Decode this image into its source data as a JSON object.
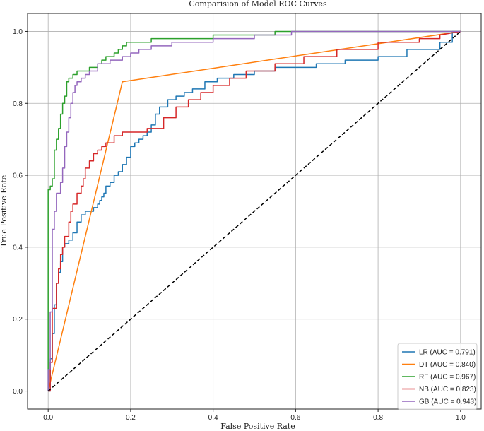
{
  "chart_data": {
    "type": "line",
    "title": "Comparision of Model ROC Curves",
    "xlabel": "False Positive Rate",
    "ylabel": "True Positive Rate",
    "xlim": [
      -0.05,
      1.05
    ],
    "ylim": [
      -0.05,
      1.05
    ],
    "xticks": [
      0.0,
      0.2,
      0.4,
      0.6,
      0.8,
      1.0
    ],
    "yticks": [
      0.0,
      0.2,
      0.4,
      0.6,
      0.8,
      1.0
    ],
    "tick_labels_x": [
      "0.0",
      "0.2",
      "0.4",
      "0.6",
      "0.8",
      "1.0"
    ],
    "tick_labels_y": [
      "0.0",
      "0.2",
      "0.4",
      "0.6",
      "0.8",
      "1.0"
    ],
    "grid": true,
    "legend": "lower-right",
    "series": [
      {
        "name": "LR (AUC = 0.791)",
        "color": "#1f77b4",
        "x": [
          0.0,
          0.005,
          0.005,
          0.01,
          0.01,
          0.015,
          0.015,
          0.02,
          0.02,
          0.025,
          0.025,
          0.03,
          0.03,
          0.035,
          0.035,
          0.04,
          0.04,
          0.05,
          0.05,
          0.06,
          0.06,
          0.07,
          0.07,
          0.08,
          0.08,
          0.09,
          0.09,
          0.11,
          0.11,
          0.12,
          0.12,
          0.125,
          0.125,
          0.13,
          0.13,
          0.135,
          0.135,
          0.14,
          0.14,
          0.15,
          0.15,
          0.16,
          0.16,
          0.17,
          0.17,
          0.18,
          0.18,
          0.19,
          0.19,
          0.2,
          0.2,
          0.21,
          0.21,
          0.22,
          0.22,
          0.23,
          0.23,
          0.24,
          0.24,
          0.25,
          0.25,
          0.26,
          0.26,
          0.27,
          0.27,
          0.29,
          0.29,
          0.31,
          0.31,
          0.33,
          0.33,
          0.35,
          0.35,
          0.38,
          0.38,
          0.41,
          0.41,
          0.45,
          0.45,
          0.5,
          0.5,
          0.55,
          0.55,
          0.6,
          0.6,
          0.65,
          0.65,
          0.72,
          0.72,
          0.8,
          0.8,
          0.87,
          0.87,
          0.9,
          0.9,
          0.95,
          0.95,
          0.98,
          0.98,
          1.0
        ],
        "y": [
          0.0,
          0.0,
          0.09,
          0.09,
          0.16,
          0.16,
          0.24,
          0.24,
          0.3,
          0.3,
          0.33,
          0.33,
          0.36,
          0.36,
          0.4,
          0.4,
          0.41,
          0.41,
          0.42,
          0.42,
          0.44,
          0.44,
          0.47,
          0.47,
          0.49,
          0.49,
          0.5,
          0.5,
          0.51,
          0.51,
          0.52,
          0.52,
          0.53,
          0.53,
          0.54,
          0.54,
          0.55,
          0.55,
          0.57,
          0.57,
          0.58,
          0.58,
          0.6,
          0.6,
          0.61,
          0.61,
          0.63,
          0.63,
          0.65,
          0.65,
          0.68,
          0.68,
          0.69,
          0.69,
          0.7,
          0.7,
          0.71,
          0.71,
          0.72,
          0.72,
          0.74,
          0.74,
          0.77,
          0.77,
          0.79,
          0.79,
          0.81,
          0.81,
          0.82,
          0.82,
          0.83,
          0.83,
          0.84,
          0.84,
          0.86,
          0.86,
          0.87,
          0.87,
          0.88,
          0.88,
          0.89,
          0.89,
          0.9,
          0.9,
          0.9,
          0.9,
          0.91,
          0.91,
          0.92,
          0.92,
          0.93,
          0.93,
          0.95,
          0.95,
          0.95,
          0.95,
          0.97,
          0.97,
          1.0,
          1.0
        ]
      },
      {
        "name": "DT (AUC = 0.840)",
        "color": "#ff7f0e",
        "x": [
          0.0,
          0.18,
          1.0
        ],
        "y": [
          0.0,
          0.86,
          1.0
        ]
      },
      {
        "name": "RF (AUC = 0.967)",
        "color": "#2ca02c",
        "x": [
          0.0,
          0.0,
          0.005,
          0.005,
          0.01,
          0.01,
          0.015,
          0.015,
          0.02,
          0.02,
          0.025,
          0.025,
          0.03,
          0.03,
          0.035,
          0.035,
          0.04,
          0.04,
          0.045,
          0.045,
          0.05,
          0.05,
          0.06,
          0.06,
          0.07,
          0.07,
          0.1,
          0.1,
          0.12,
          0.12,
          0.13,
          0.13,
          0.14,
          0.14,
          0.16,
          0.16,
          0.17,
          0.17,
          0.18,
          0.18,
          0.19,
          0.19,
          0.21,
          0.21,
          0.25,
          0.25,
          0.3,
          0.3,
          0.4,
          0.4,
          0.55,
          0.55,
          0.59,
          0.59,
          1.0
        ],
        "y": [
          0.0,
          0.56,
          0.56,
          0.57,
          0.57,
          0.59,
          0.59,
          0.67,
          0.67,
          0.7,
          0.7,
          0.73,
          0.73,
          0.77,
          0.77,
          0.8,
          0.8,
          0.82,
          0.82,
          0.86,
          0.86,
          0.87,
          0.87,
          0.88,
          0.88,
          0.89,
          0.89,
          0.9,
          0.9,
          0.91,
          0.91,
          0.92,
          0.92,
          0.93,
          0.93,
          0.94,
          0.94,
          0.95,
          0.95,
          0.96,
          0.96,
          0.97,
          0.97,
          0.97,
          0.97,
          0.98,
          0.98,
          0.98,
          0.98,
          0.99,
          0.99,
          1.0,
          1.0,
          1.0,
          1.0
        ]
      },
      {
        "name": "NB (AUC = 0.823)",
        "color": "#d62728",
        "x": [
          0.0,
          0.005,
          0.005,
          0.01,
          0.01,
          0.02,
          0.02,
          0.025,
          0.025,
          0.03,
          0.03,
          0.035,
          0.035,
          0.04,
          0.04,
          0.05,
          0.05,
          0.055,
          0.055,
          0.06,
          0.06,
          0.07,
          0.07,
          0.08,
          0.08,
          0.085,
          0.085,
          0.09,
          0.09,
          0.1,
          0.1,
          0.11,
          0.11,
          0.12,
          0.12,
          0.13,
          0.13,
          0.14,
          0.14,
          0.16,
          0.16,
          0.18,
          0.18,
          0.24,
          0.24,
          0.28,
          0.28,
          0.31,
          0.31,
          0.34,
          0.34,
          0.37,
          0.37,
          0.4,
          0.4,
          0.44,
          0.44,
          0.48,
          0.48,
          0.55,
          0.55,
          0.62,
          0.62,
          0.7,
          0.7,
          0.8,
          0.8,
          0.9,
          0.9,
          0.95,
          0.95,
          1.0
        ],
        "y": [
          0.0,
          0.0,
          0.08,
          0.08,
          0.23,
          0.23,
          0.3,
          0.3,
          0.34,
          0.34,
          0.38,
          0.38,
          0.4,
          0.4,
          0.43,
          0.43,
          0.47,
          0.47,
          0.5,
          0.5,
          0.52,
          0.52,
          0.55,
          0.55,
          0.57,
          0.57,
          0.59,
          0.59,
          0.62,
          0.62,
          0.64,
          0.64,
          0.66,
          0.66,
          0.67,
          0.67,
          0.68,
          0.68,
          0.69,
          0.69,
          0.71,
          0.71,
          0.72,
          0.72,
          0.73,
          0.73,
          0.76,
          0.76,
          0.79,
          0.79,
          0.81,
          0.81,
          0.83,
          0.83,
          0.85,
          0.85,
          0.87,
          0.87,
          0.89,
          0.89,
          0.91,
          0.91,
          0.93,
          0.93,
          0.95,
          0.95,
          0.97,
          0.97,
          0.98,
          0.98,
          0.99,
          1.0
        ]
      },
      {
        "name": "GB (AUC = 0.943)",
        "color": "#9467bd",
        "x": [
          0.0,
          0.0,
          0.005,
          0.005,
          0.01,
          0.01,
          0.015,
          0.015,
          0.02,
          0.02,
          0.03,
          0.03,
          0.035,
          0.035,
          0.04,
          0.04,
          0.045,
          0.045,
          0.05,
          0.05,
          0.055,
          0.055,
          0.06,
          0.06,
          0.065,
          0.065,
          0.07,
          0.07,
          0.08,
          0.08,
          0.09,
          0.09,
          0.1,
          0.1,
          0.12,
          0.12,
          0.15,
          0.15,
          0.18,
          0.18,
          0.2,
          0.2,
          0.22,
          0.22,
          0.25,
          0.25,
          0.3,
          0.3,
          0.4,
          0.4,
          0.5,
          0.5,
          0.59,
          0.59,
          1.0
        ],
        "y": [
          0.0,
          0.06,
          0.06,
          0.22,
          0.22,
          0.45,
          0.45,
          0.5,
          0.5,
          0.55,
          0.55,
          0.58,
          0.58,
          0.62,
          0.62,
          0.68,
          0.68,
          0.72,
          0.72,
          0.76,
          0.76,
          0.8,
          0.8,
          0.83,
          0.83,
          0.85,
          0.85,
          0.86,
          0.86,
          0.87,
          0.87,
          0.88,
          0.88,
          0.89,
          0.89,
          0.91,
          0.91,
          0.92,
          0.92,
          0.93,
          0.93,
          0.94,
          0.94,
          0.95,
          0.95,
          0.96,
          0.96,
          0.97,
          0.97,
          0.98,
          0.98,
          0.99,
          0.99,
          1.0,
          1.0
        ]
      }
    ],
    "reference_line": {
      "style": "dashed",
      "color": "#000000",
      "x": [
        0.0,
        1.0
      ],
      "y": [
        0.0,
        1.0
      ]
    }
  }
}
